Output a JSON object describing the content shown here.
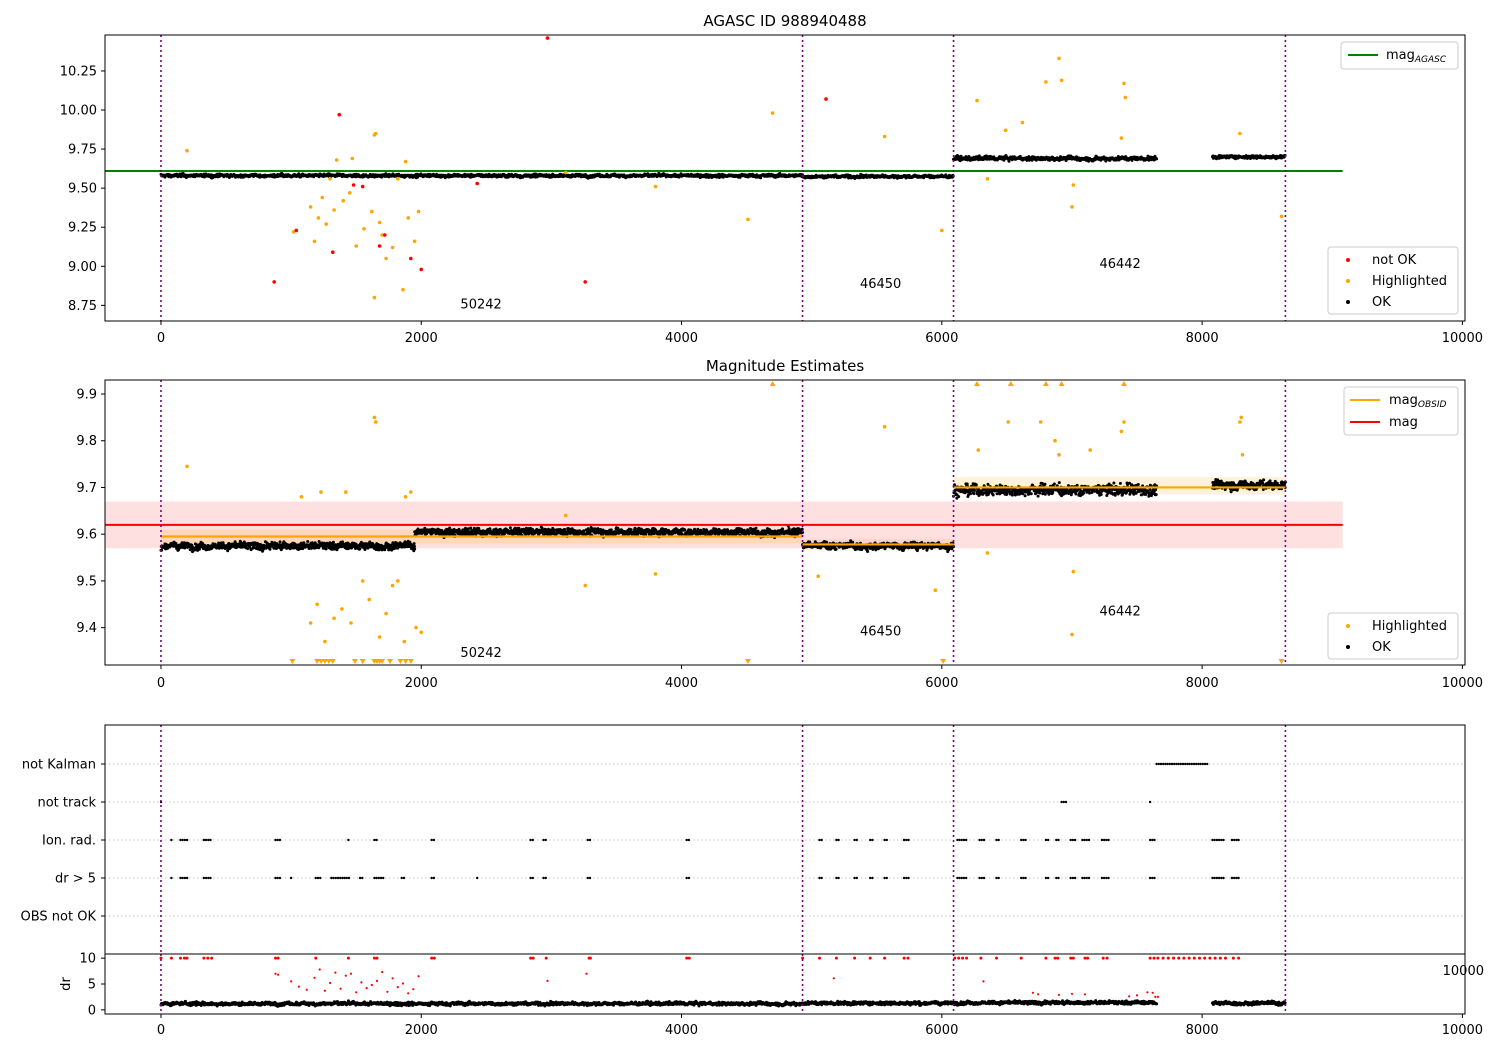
{
  "chart_data": [
    {
      "type": "scatter",
      "title": "AGASC ID 988940488",
      "xlim": [
        -430,
        10020
      ],
      "ylim": [
        8.65,
        10.48
      ],
      "xticks": [
        0,
        2000,
        4000,
        6000,
        8000,
        10000
      ],
      "yticks": [
        8.75,
        9.0,
        9.25,
        9.5,
        9.75,
        10.0,
        10.25
      ],
      "obsid_boundaries": [
        0,
        4930,
        6090,
        8640
      ],
      "obsid_labels": [
        {
          "text": "50242",
          "x": 2460,
          "y": 8.73
        },
        {
          "text": "46450",
          "x": 5530,
          "y": 8.86
        },
        {
          "text": "46442",
          "x": 7370,
          "y": 8.99
        }
      ],
      "lines": [
        {
          "name": "mag_AGASC",
          "label_main": "mag",
          "label_sub": "AGASC",
          "y": 9.61,
          "x": [
            -430,
            9080
          ],
          "color": "#008000"
        }
      ],
      "segments": [
        {
          "x": [
            0,
            4930
          ],
          "level": 9.58,
          "spread": 0.015
        },
        {
          "x": [
            4930,
            6090
          ],
          "level": 9.575,
          "spread": 0.015
        },
        {
          "x": [
            6090,
            7650
          ],
          "level": 9.69,
          "spread": 0.02
        },
        {
          "x": [
            8080,
            8640
          ],
          "level": 9.7,
          "spread": 0.015
        }
      ],
      "series": [
        {
          "name": "not OK",
          "color": "#ff0000"
        },
        {
          "name": "Highlighted",
          "color": "#ffa500"
        },
        {
          "name": "OK",
          "color": "#000000"
        }
      ],
      "not_ok_points": [
        [
          2970,
          10.46
        ],
        [
          1370,
          9.97
        ],
        [
          5110,
          10.07
        ],
        [
          870,
          8.9
        ],
        [
          3260,
          8.9
        ],
        [
          1040,
          9.23
        ],
        [
          1320,
          9.09
        ],
        [
          1680,
          9.13
        ],
        [
          1720,
          9.2
        ],
        [
          1920,
          9.05
        ],
        [
          2000,
          8.98
        ],
        [
          2430,
          9.53
        ],
        [
          1480,
          9.52
        ],
        [
          1550,
          9.51
        ]
      ],
      "highlighted_points": [
        [
          200,
          9.74
        ],
        [
          1020,
          9.22
        ],
        [
          1150,
          9.38
        ],
        [
          1180,
          9.16
        ],
        [
          1210,
          9.31
        ],
        [
          1240,
          9.44
        ],
        [
          1270,
          9.27
        ],
        [
          1300,
          9.56
        ],
        [
          1330,
          9.36
        ],
        [
          1400,
          9.42
        ],
        [
          1450,
          9.47
        ],
        [
          1500,
          9.13
        ],
        [
          1560,
          9.24
        ],
        [
          1620,
          9.35
        ],
        [
          1640,
          9.84
        ],
        [
          1650,
          9.85
        ],
        [
          1680,
          9.28
        ],
        [
          1700,
          9.2
        ],
        [
          1730,
          9.05
        ],
        [
          1780,
          9.12
        ],
        [
          1820,
          9.56
        ],
        [
          1860,
          8.85
        ],
        [
          1880,
          9.67
        ],
        [
          1900,
          9.31
        ],
        [
          1950,
          9.16
        ],
        [
          1980,
          9.35
        ],
        [
          1640,
          8.8
        ],
        [
          1350,
          9.68
        ],
        [
          1470,
          9.69
        ],
        [
          4700,
          9.98
        ],
        [
          4510,
          9.3
        ],
        [
          5560,
          9.83
        ],
        [
          6000,
          9.23
        ],
        [
          6270,
          10.06
        ],
        [
          6490,
          9.87
        ],
        [
          6620,
          9.92
        ],
        [
          6800,
          10.18
        ],
        [
          6900,
          10.33
        ],
        [
          6920,
          10.19
        ],
        [
          7010,
          9.52
        ],
        [
          7000,
          9.38
        ],
        [
          7400,
          10.17
        ],
        [
          7410,
          10.08
        ],
        [
          7380,
          9.82
        ],
        [
          8290,
          9.85
        ],
        [
          8610,
          9.32
        ],
        [
          3800,
          9.51
        ],
        [
          3110,
          9.6
        ],
        [
          6350,
          9.56
        ]
      ]
    },
    {
      "type": "scatter",
      "title": "Magnitude Estimates",
      "xlim": [
        -430,
        10020
      ],
      "ylim": [
        9.32,
        9.93
      ],
      "xticks": [
        0,
        2000,
        4000,
        6000,
        8000,
        10000
      ],
      "yticks": [
        9.4,
        9.5,
        9.6,
        9.7,
        9.8,
        9.9
      ],
      "obsid_boundaries": [
        0,
        4930,
        6090,
        8640
      ],
      "obsid_labels": [
        {
          "text": "50242",
          "x": 2460,
          "y": 9.337
        },
        {
          "text": "46450",
          "x": 5530,
          "y": 9.383
        },
        {
          "text": "46442",
          "x": 7370,
          "y": 9.426
        }
      ],
      "lines": [
        {
          "name": "mag_OBSID",
          "label_main": "mag",
          "label_sub": "OBSID",
          "color": "#ffa500"
        },
        {
          "name": "mag",
          "label_main": "mag",
          "label_sub": "",
          "y": 9.62,
          "x": [
            -430,
            9080
          ],
          "color": "#ff0000",
          "band": [
            9.57,
            9.67
          ]
        }
      ],
      "obsid_mags": [
        {
          "x": [
            0,
            4930
          ],
          "y": 9.595,
          "band": [
            9.58,
            9.61
          ]
        },
        {
          "x": [
            4930,
            6090
          ],
          "y": 9.578,
          "band": [
            9.565,
            9.59
          ]
        },
        {
          "x": [
            6090,
            8640
          ],
          "y": 9.7,
          "band": [
            9.685,
            9.722
          ]
        }
      ],
      "segments": [
        {
          "x": [
            0,
            1950
          ],
          "level": 9.575,
          "spread": 0.012
        },
        {
          "x": [
            1950,
            4930
          ],
          "level": 9.605,
          "spread": 0.012
        },
        {
          "x": [
            4930,
            6090
          ],
          "level": 9.575,
          "spread": 0.012
        },
        {
          "x": [
            6090,
            7650
          ],
          "level": 9.695,
          "spread": 0.018
        },
        {
          "x": [
            8080,
            8640
          ],
          "level": 9.705,
          "spread": 0.015
        }
      ],
      "series": [
        {
          "name": "Highlighted",
          "color": "#ffa500"
        },
        {
          "name": "OK",
          "color": "#000000"
        }
      ],
      "highlighted_points": [
        [
          200,
          9.745
        ],
        [
          1080,
          9.68
        ],
        [
          1230,
          9.69
        ],
        [
          1420,
          9.69
        ],
        [
          1640,
          9.85
        ],
        [
          1650,
          9.84
        ],
        [
          1880,
          9.68
        ],
        [
          1920,
          9.69
        ],
        [
          1150,
          9.41
        ],
        [
          1200,
          9.45
        ],
        [
          1260,
          9.37
        ],
        [
          1330,
          9.42
        ],
        [
          1390,
          9.44
        ],
        [
          1460,
          9.41
        ],
        [
          1550,
          9.5
        ],
        [
          1600,
          9.46
        ],
        [
          1680,
          9.38
        ],
        [
          1730,
          9.43
        ],
        [
          1780,
          9.49
        ],
        [
          1820,
          9.5
        ],
        [
          1870,
          9.37
        ],
        [
          1960,
          9.4
        ],
        [
          2000,
          9.39
        ],
        [
          3260,
          9.49
        ],
        [
          3800,
          9.515
        ],
        [
          5560,
          9.83
        ],
        [
          5950,
          9.48
        ],
        [
          6280,
          9.78
        ],
        [
          6510,
          9.84
        ],
        [
          6760,
          9.84
        ],
        [
          6870,
          9.8
        ],
        [
          6900,
          9.77
        ],
        [
          7010,
          9.52
        ],
        [
          7000,
          9.385
        ],
        [
          7140,
          9.78
        ],
        [
          7380,
          9.82
        ],
        [
          7400,
          9.84
        ],
        [
          8290,
          9.84
        ],
        [
          8300,
          9.85
        ],
        [
          8310,
          9.77
        ],
        [
          6350,
          9.56
        ],
        [
          5050,
          9.51
        ],
        [
          3110,
          9.64
        ]
      ],
      "highlighted_markers_top": [
        4700,
        6270,
        6530,
        6800,
        6920,
        7400
      ],
      "highlighted_markers_bottom": [
        1010,
        1200,
        1230,
        1260,
        1290,
        1320,
        1490,
        1550,
        1640,
        1660,
        1680,
        1700,
        1760,
        1840,
        1880,
        1920,
        4510,
        6010,
        8610
      ]
    },
    {
      "type": "scatter",
      "title": "",
      "xlim": [
        -430,
        10020
      ],
      "categories": [
        "OBS not OK",
        "dr > 5",
        "Ion. rad.",
        "not track",
        "not Kalman"
      ],
      "obsid_boundaries": [
        0,
        4930,
        6090,
        8640
      ],
      "flag_clusters": {
        "not Kalman": [
          [
            7650,
            8050
          ]
        ],
        "not track": [
          [
            0,
            10
          ],
          [
            6920,
            6960
          ],
          [
            7600,
            7610
          ]
        ],
        "Ion. rad.": [
          [
            80,
            90
          ],
          [
            150,
            210
          ],
          [
            330,
            390
          ],
          [
            880,
            920
          ],
          [
            1440,
            1450
          ],
          [
            1640,
            1660
          ],
          [
            2080,
            2110
          ],
          [
            2840,
            2870
          ],
          [
            2940,
            2970
          ],
          [
            3280,
            3310
          ],
          [
            4040,
            4070
          ],
          [
            5060,
            5080
          ],
          [
            5190,
            5220
          ],
          [
            5330,
            5360
          ],
          [
            5450,
            5470
          ],
          [
            5560,
            5580
          ],
          [
            5710,
            5760
          ],
          [
            6120,
            6190
          ],
          [
            6290,
            6330
          ],
          [
            6420,
            6450
          ],
          [
            6610,
            6650
          ],
          [
            6800,
            6830
          ],
          [
            6880,
            6900
          ],
          [
            6990,
            7040
          ],
          [
            7080,
            7140
          ],
          [
            7230,
            7290
          ],
          [
            7600,
            7650
          ],
          [
            8080,
            8170
          ],
          [
            8230,
            8290
          ]
        ],
        "dr > 5": [
          [
            80,
            90
          ],
          [
            150,
            210
          ],
          [
            330,
            390
          ],
          [
            880,
            920
          ],
          [
            1000,
            1010
          ],
          [
            1190,
            1230
          ],
          [
            1310,
            1460
          ],
          [
            1530,
            1560
          ],
          [
            1640,
            1720
          ],
          [
            1850,
            1870
          ],
          [
            2080,
            2110
          ],
          [
            2430,
            2440
          ],
          [
            2840,
            2870
          ],
          [
            2940,
            2970
          ],
          [
            3280,
            3310
          ],
          [
            4040,
            4070
          ],
          [
            5060,
            5080
          ],
          [
            5190,
            5220
          ],
          [
            5330,
            5360
          ],
          [
            5450,
            5470
          ],
          [
            5560,
            5580
          ],
          [
            5710,
            5760
          ],
          [
            6120,
            6190
          ],
          [
            6290,
            6330
          ],
          [
            6420,
            6450
          ],
          [
            6610,
            6650
          ],
          [
            6800,
            6830
          ],
          [
            6880,
            6900
          ],
          [
            6990,
            7040
          ],
          [
            7080,
            7140
          ],
          [
            7230,
            7290
          ],
          [
            7600,
            7650
          ],
          [
            8080,
            8170
          ],
          [
            8230,
            8290
          ]
        ]
      }
    },
    {
      "type": "scatter",
      "title": "",
      "ylabel": "dr",
      "xlim": [
        -430,
        10020
      ],
      "ylim": [
        -0.8,
        10.8
      ],
      "xticks": [
        0,
        2000,
        4000,
        6000,
        8000,
        10000
      ],
      "xtick_labels": [
        "0",
        "2000",
        "4000",
        "6000",
        "8000",
        "10000"
      ],
      "yticks": [
        0,
        5,
        10
      ],
      "obsid_boundaries": [
        0,
        4930,
        6090,
        8640
      ],
      "segments": [
        {
          "x": [
            0,
            4930
          ],
          "level": 1.2,
          "spread": 0.5
        },
        {
          "x": [
            4930,
            6090
          ],
          "level": 1.3,
          "spread": 0.5
        },
        {
          "x": [
            6090,
            7650
          ],
          "level": 1.4,
          "spread": 0.5
        },
        {
          "x": [
            8080,
            8640
          ],
          "level": 1.3,
          "spread": 0.5
        }
      ],
      "clipped_points_x": [
        0,
        80,
        150,
        180,
        200,
        330,
        360,
        390,
        880,
        900,
        1190,
        1440,
        1640,
        1660,
        2080,
        2100,
        2840,
        2860,
        2960,
        3290,
        3300,
        4040,
        4060,
        4930,
        5060,
        5190,
        5330,
        5450,
        5560,
        5710,
        5740,
        6100,
        6130,
        6160,
        6190,
        6300,
        6420,
        6610,
        6800,
        6870,
        6890,
        6990,
        7010,
        7100,
        7120,
        7240,
        7270,
        7600,
        7630,
        7660,
        7700,
        7740,
        7780,
        7820,
        7860,
        7900,
        7940,
        7980,
        8020,
        8060,
        8100,
        8140,
        8180,
        8240,
        8280
      ],
      "red_points": [
        [
          880,
          7.0
        ],
        [
          900,
          6.8
        ],
        [
          1000,
          5.5
        ],
        [
          1060,
          4.5
        ],
        [
          1120,
          3.9
        ],
        [
          1180,
          6.2
        ],
        [
          1220,
          7.8
        ],
        [
          1260,
          3.7
        ],
        [
          1300,
          5.2
        ],
        [
          1340,
          7.2
        ],
        [
          1380,
          4.1
        ],
        [
          1420,
          6.6
        ],
        [
          1460,
          7.0
        ],
        [
          1500,
          3.4
        ],
        [
          1540,
          5.3
        ],
        [
          1580,
          4.2
        ],
        [
          1620,
          4.8
        ],
        [
          1660,
          5.6
        ],
        [
          1700,
          7.3
        ],
        [
          1740,
          3.5
        ],
        [
          1780,
          6.1
        ],
        [
          1820,
          4.4
        ],
        [
          1860,
          5.1
        ],
        [
          1900,
          3.2
        ],
        [
          1940,
          4.0
        ],
        [
          1980,
          6.5
        ],
        [
          2970,
          5.6
        ],
        [
          3270,
          7.0
        ],
        [
          5170,
          6.1
        ],
        [
          6320,
          5.5
        ],
        [
          6700,
          3.3
        ],
        [
          6740,
          3.0
        ],
        [
          6900,
          2.9
        ],
        [
          7000,
          3.1
        ],
        [
          7100,
          3.0
        ],
        [
          7440,
          2.6
        ],
        [
          7500,
          2.8
        ],
        [
          7580,
          3.4
        ],
        [
          7620,
          3.3
        ],
        [
          7640,
          2.5
        ],
        [
          7660,
          2.5
        ]
      ]
    }
  ]
}
